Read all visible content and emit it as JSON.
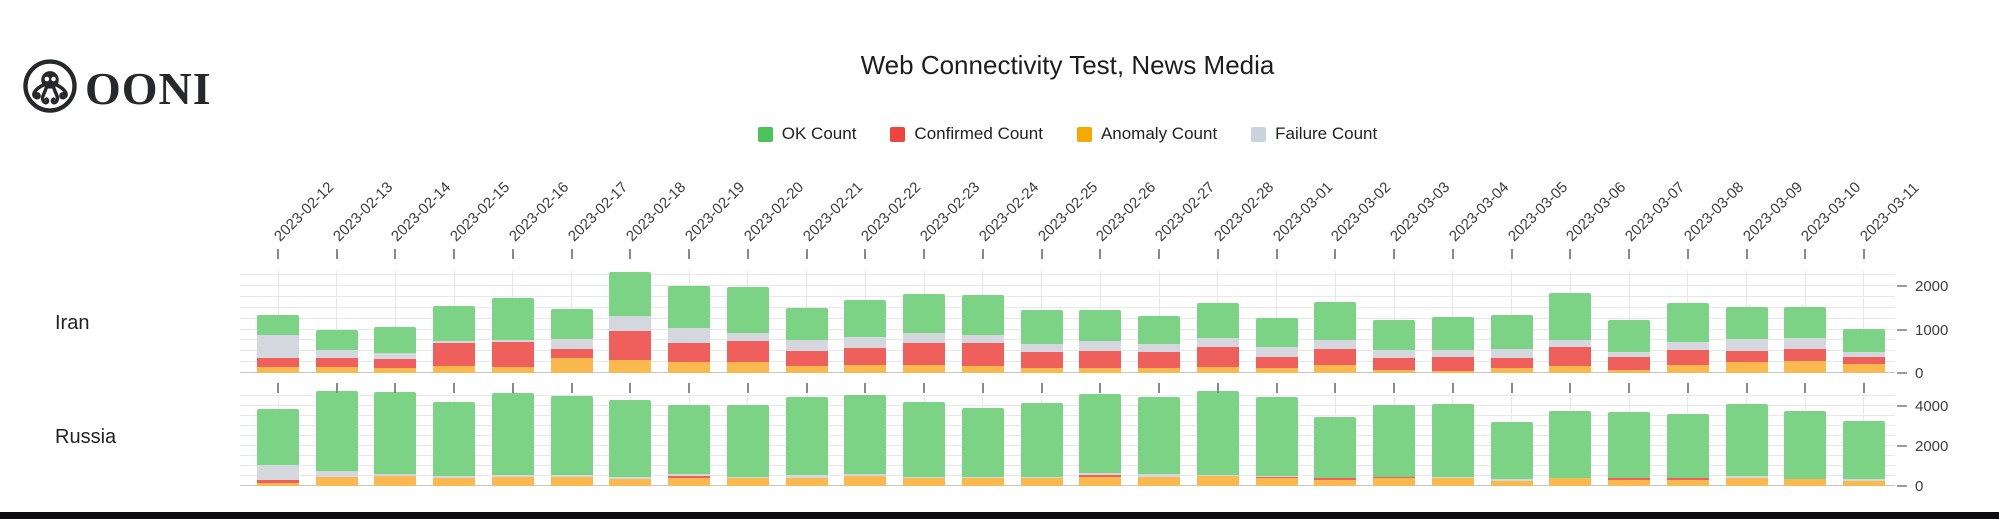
{
  "logo": {
    "text": "OONI",
    "icon": "octopus-icon"
  },
  "title": "Web Connectivity Test, News Media",
  "legend": {
    "items": [
      {
        "label": "OK Count",
        "color": "#4cc45c"
      },
      {
        "label": "Confirmed Count",
        "color": "#ee453e"
      },
      {
        "label": "Anomaly Count",
        "color": "#f5a800"
      },
      {
        "label": "Failure Count",
        "color": "#ccd3dc"
      }
    ]
  },
  "colors": {
    "ok_bar": "#7cd386",
    "confirmed_bar": "#ef5f5b",
    "anomaly_bar": "#f9b94e",
    "failure_bar": "#d4d8de",
    "grid": "#e8e8e8",
    "bottom_strip": "#0c0c12"
  },
  "chart_data": [
    {
      "type": "bar",
      "stacked": true,
      "row": "Iran",
      "ylim": [
        0,
        2345
      ],
      "yticks": [
        0,
        1000,
        2000
      ],
      "grid_step": 250,
      "legend_position": "top",
      "grid": true,
      "categories": [
        "2023-02-12",
        "2023-02-13",
        "2023-02-14",
        "2023-02-15",
        "2023-02-16",
        "2023-02-17",
        "2023-02-18",
        "2023-02-19",
        "2023-02-20",
        "2023-02-21",
        "2023-02-22",
        "2023-02-23",
        "2023-02-24",
        "2023-02-25",
        "2023-02-26",
        "2023-02-27",
        "2023-02-28",
        "2023-03-01",
        "2023-03-02",
        "2023-03-03",
        "2023-03-04",
        "2023-03-05",
        "2023-03-06",
        "2023-03-07",
        "2023-03-08",
        "2023-03-09",
        "2023-03-10",
        "2023-03-11"
      ],
      "series": [
        {
          "name": "Anomaly Count",
          "color": "#f9b94e",
          "values": [
            130,
            130,
            115,
            155,
            140,
            350,
            310,
            255,
            255,
            165,
            180,
            180,
            165,
            115,
            115,
            115,
            140,
            115,
            180,
            60,
            45,
            125,
            165,
            60,
            195,
            255,
            280,
            215
          ]
        },
        {
          "name": "Confirmed Count",
          "color": "#ef5f5b",
          "values": [
            215,
            215,
            215,
            540,
            580,
            195,
            660,
            425,
            490,
            350,
            390,
            520,
            535,
            375,
            390,
            375,
            450,
            255,
            375,
            285,
            325,
            210,
            425,
            310,
            335,
            250,
            270,
            155
          ]
        },
        {
          "name": "Failure Count",
          "color": "#d4d8de",
          "values": [
            540,
            195,
            130,
            40,
            30,
            230,
            350,
            350,
            170,
            235,
            250,
            215,
            180,
            180,
            220,
            180,
            225,
            220,
            195,
            180,
            170,
            210,
            170,
            115,
            180,
            270,
            250,
            115
          ]
        },
        {
          "name": "OK Count",
          "color": "#7cd386",
          "values": [
            450,
            440,
            595,
            815,
            985,
            700,
            1010,
            970,
            1065,
            755,
            860,
            895,
            910,
            775,
            725,
            635,
            785,
            675,
            885,
            700,
            740,
            800,
            1090,
            725,
            895,
            745,
            725,
            520
          ]
        }
      ]
    },
    {
      "type": "bar",
      "stacked": true,
      "row": "Russia",
      "ylim": [
        0,
        4500
      ],
      "yticks": [
        0,
        2000,
        4000
      ],
      "grid_step": 500,
      "legend_position": "top",
      "grid": true,
      "categories": [
        "2023-02-12",
        "2023-02-13",
        "2023-02-14",
        "2023-02-15",
        "2023-02-16",
        "2023-02-17",
        "2023-02-18",
        "2023-02-19",
        "2023-02-20",
        "2023-02-21",
        "2023-02-22",
        "2023-02-23",
        "2023-02-24",
        "2023-02-25",
        "2023-02-26",
        "2023-02-27",
        "2023-02-28",
        "2023-03-01",
        "2023-03-02",
        "2023-03-03",
        "2023-03-04",
        "2023-03-05",
        "2023-03-06",
        "2023-03-07",
        "2023-03-08",
        "2023-03-09",
        "2023-03-10",
        "2023-03-11"
      ],
      "series": [
        {
          "name": "Anomaly Count",
          "color": "#f9b94e",
          "values": [
            145,
            430,
            515,
            385,
            465,
            465,
            350,
            400,
            430,
            385,
            510,
            385,
            385,
            385,
            430,
            465,
            510,
            385,
            320,
            385,
            385,
            270,
            400,
            290,
            290,
            400,
            350,
            240
          ]
        },
        {
          "name": "Confirmed Count",
          "color": "#ef5f5b",
          "values": [
            135,
            0,
            0,
            0,
            0,
            0,
            0,
            110,
            0,
            0,
            0,
            0,
            0,
            0,
            110,
            0,
            0,
            80,
            65,
            80,
            0,
            0,
            0,
            110,
            110,
            0,
            0,
            0
          ]
        },
        {
          "name": "Failure Count",
          "color": "#d4d8de",
          "values": [
            750,
            330,
            110,
            130,
            80,
            80,
            80,
            80,
            30,
            160,
            80,
            80,
            80,
            80,
            95,
            130,
            30,
            50,
            0,
            0,
            80,
            80,
            0,
            0,
            0,
            110,
            0,
            110
          ]
        },
        {
          "name": "OK Count",
          "color": "#7cd386",
          "values": [
            2820,
            4000,
            4080,
            3680,
            4095,
            3970,
            3875,
            3440,
            3610,
            3890,
            3950,
            3730,
            3455,
            3695,
            3985,
            3870,
            4210,
            3950,
            3090,
            3600,
            3650,
            2835,
            3350,
            3310,
            3200,
            3615,
            3410,
            2880
          ]
        }
      ]
    }
  ]
}
